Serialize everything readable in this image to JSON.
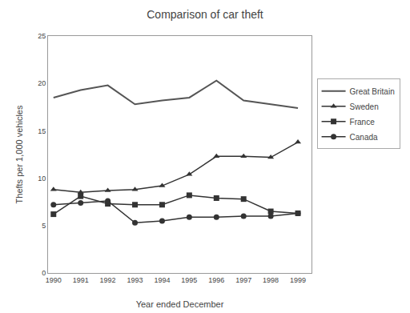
{
  "chart_data": {
    "type": "line",
    "title": "Comparison of car theft",
    "xlabel": "Year ended December",
    "ylabel": "Thefts per 1,000 vehicles",
    "x": [
      1990,
      1991,
      1992,
      1993,
      1994,
      1995,
      1996,
      1997,
      1998,
      1999
    ],
    "series": [
      {
        "name": "Great Britain",
        "color": "#555555",
        "marker": "none",
        "line_style": "solid",
        "values": [
          18.5,
          19.3,
          19.8,
          17.8,
          18.2,
          18.5,
          20.3,
          18.2,
          17.8,
          17.4
        ]
      },
      {
        "name": "Sweden",
        "color": "#333333",
        "marker": "triangle-up",
        "line_style": "solid",
        "values": [
          8.8,
          8.5,
          8.7,
          8.8,
          9.2,
          10.4,
          12.3,
          12.3,
          12.2,
          13.8
        ]
      },
      {
        "name": "France",
        "color": "#333333",
        "marker": "square",
        "line_style": "solid",
        "values": [
          6.2,
          8.1,
          7.3,
          7.2,
          7.2,
          8.2,
          7.9,
          7.8,
          6.5,
          6.3
        ]
      },
      {
        "name": "Canada",
        "color": "#333333",
        "marker": "circle",
        "line_style": "solid",
        "values": [
          7.2,
          7.4,
          7.6,
          5.3,
          5.5,
          5.9,
          5.9,
          6.0,
          6.0,
          6.3
        ]
      }
    ],
    "xlim": [
      1989.8,
      1999.5
    ],
    "xticks": [
      1990,
      1991,
      1992,
      1993,
      1994,
      1995,
      1996,
      1997,
      1998,
      1999
    ],
    "ylim": [
      0,
      25
    ],
    "yticks": [
      0,
      5,
      10,
      15,
      20,
      25
    ],
    "grid": false,
    "legend": "right"
  }
}
